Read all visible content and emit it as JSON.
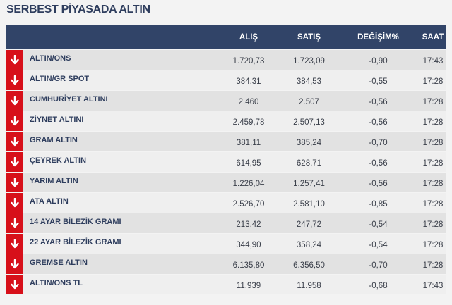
{
  "title": "SERBEST PİYASADA ALTIN",
  "columns": [
    "ALIŞ",
    "SATIŞ",
    "DEĞİŞİM%",
    "SAAT"
  ],
  "colors": {
    "header": "#314468",
    "down": "#d7101a",
    "title": "#2f3e5e"
  },
  "rows": [
    {
      "name": "ALTIN/ONS",
      "alis": "1.720,73",
      "satis": "1.723,09",
      "degisim": "-0,90",
      "saat": "17:43",
      "trend": "down-arrow-icon"
    },
    {
      "name": "ALTIN/GR SPOT",
      "alis": "384,31",
      "satis": "384,53",
      "degisim": "-0,55",
      "saat": "17:28",
      "trend": "down-arrow-icon"
    },
    {
      "name": "CUMHURİYET ALTINI",
      "alis": "2.460",
      "satis": "2.507",
      "degisim": "-0,56",
      "saat": "17:28",
      "trend": "down-arrow-icon"
    },
    {
      "name": "ZİYNET ALTINI",
      "alis": "2.459,78",
      "satis": "2.507,13",
      "degisim": "-0,56",
      "saat": "17:28",
      "trend": "down-arrow-icon"
    },
    {
      "name": "GRAM ALTIN",
      "alis": "381,11",
      "satis": "385,24",
      "degisim": "-0,70",
      "saat": "17:28",
      "trend": "down-arrow-icon"
    },
    {
      "name": "ÇEYREK ALTIN",
      "alis": "614,95",
      "satis": "628,71",
      "degisim": "-0,56",
      "saat": "17:28",
      "trend": "down-arrow-icon"
    },
    {
      "name": "YARIM ALTIN",
      "alis": "1.226,04",
      "satis": "1.257,41",
      "degisim": "-0,56",
      "saat": "17:28",
      "trend": "down-arrow-icon"
    },
    {
      "name": "ATA ALTIN",
      "alis": "2.526,70",
      "satis": "2.581,10",
      "degisim": "-0,85",
      "saat": "17:28",
      "trend": "down-arrow-icon"
    },
    {
      "name": "14 AYAR BİLEZİK GRAMI",
      "alis": "213,42",
      "satis": "247,72",
      "degisim": "-0,54",
      "saat": "17:28",
      "trend": "down-arrow-icon"
    },
    {
      "name": "22 AYAR BİLEZİK GRAMI",
      "alis": "344,90",
      "satis": "358,24",
      "degisim": "-0,54",
      "saat": "17:28",
      "trend": "down-arrow-icon"
    },
    {
      "name": "GREMSE ALTIN",
      "alis": "6.135,80",
      "satis": "6.356,50",
      "degisim": "-0,70",
      "saat": "17:28",
      "trend": "down-arrow-icon"
    },
    {
      "name": "ALTIN/ONS TL",
      "alis": "11.939",
      "satis": "11.958",
      "degisim": "-0,68",
      "saat": "17:43",
      "trend": "down-arrow-icon"
    }
  ]
}
